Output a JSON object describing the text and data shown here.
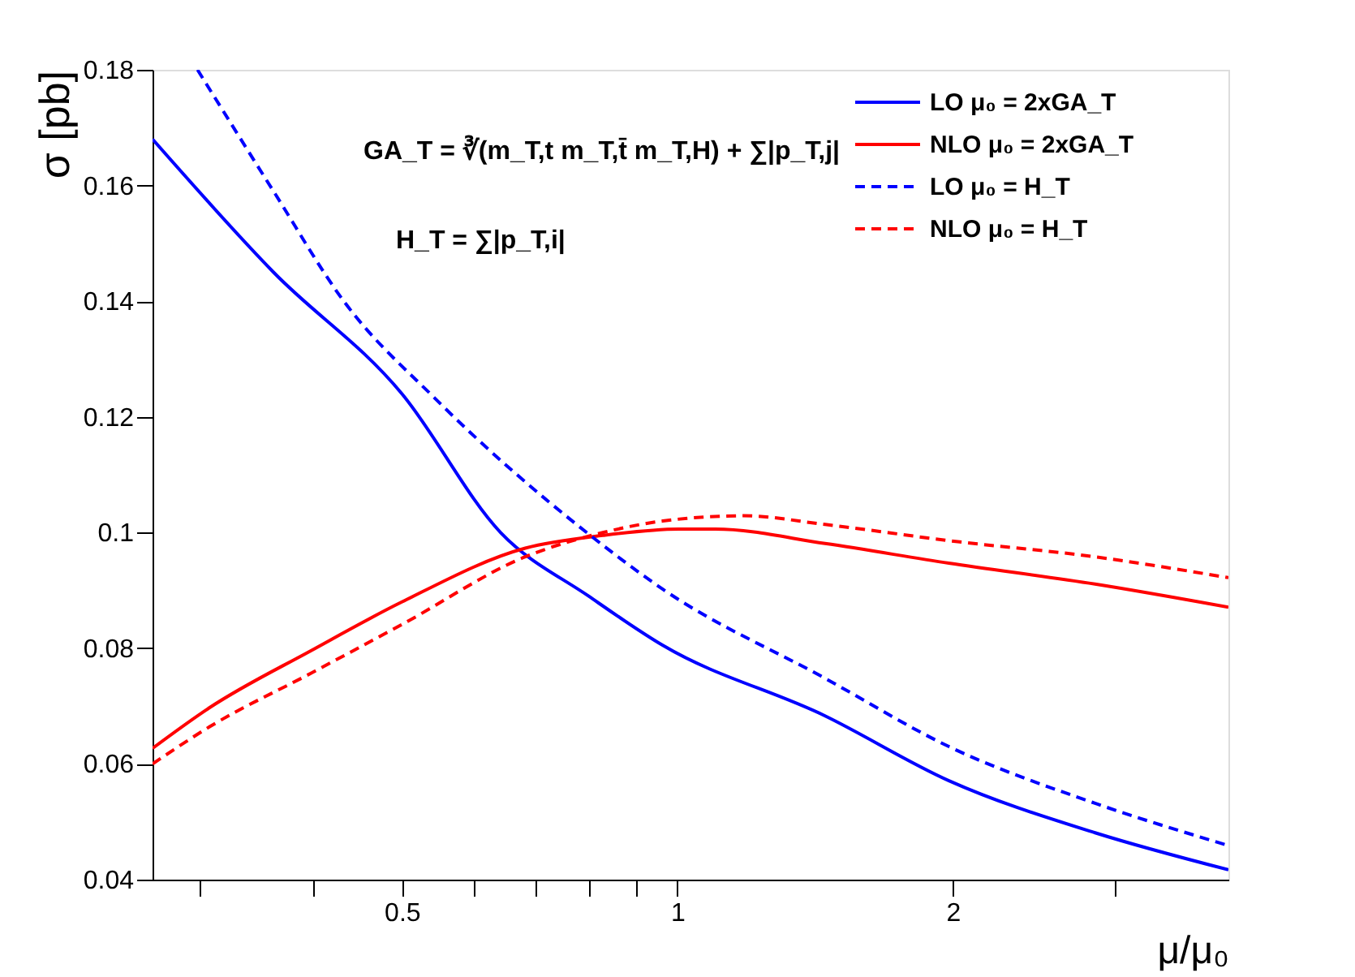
{
  "chart_data": {
    "type": "line",
    "xlabel": "μ/μ₀",
    "ylabel": "σ [pb]",
    "log": "x",
    "grid": false,
    "legend": "top right",
    "marker": "none",
    "xlim": [
      0.267,
      4
    ],
    "xticks": [
      {
        "value": 0.3,
        "label": null
      },
      {
        "value": 0.4,
        "label": null
      },
      0.5,
      {
        "value": 0.6,
        "label": null
      },
      {
        "value": 0.7,
        "label": null
      },
      {
        "value": 0.8,
        "label": null
      },
      {
        "value": 0.9,
        "label": null
      },
      1,
      2,
      {
        "value": 3,
        "label": null
      }
    ],
    "ylim": [
      0.04,
      0.18
    ],
    "yticks": [
      0.04,
      0.06,
      0.08,
      0.1,
      0.12,
      0.14,
      0.16,
      0.18
    ],
    "annotations": [
      "GA_T = ∛(m_T,t m_T,t̄ m_T,H) + ∑|p_T,j|",
      "H_T = ∑|p_T,i|"
    ],
    "series": [
      {
        "name": "LO μ₀ = 2xGA_T",
        "color": "#0000ff",
        "line_style": "solid",
        "x": [
          0.267,
          0.362,
          0.5,
          0.641,
          0.8,
          0.964,
          1.45,
          1.98,
          2.86,
          4
        ],
        "values": [
          0.168,
          0.145,
          0.124,
          0.1,
          0.089,
          0.0805,
          0.0683,
          0.0571,
          0.0481,
          0.0417
        ]
      },
      {
        "name": "NLO μ₀ = 2xGA_T",
        "color": "#ff0000",
        "line_style": "solid",
        "x": [
          0.267,
          0.308,
          0.398,
          0.5,
          0.682,
          0.829,
          1.004,
          1.1,
          1.45,
          1.98,
          2.86,
          4
        ],
        "values": [
          0.0627,
          0.0697,
          0.0796,
          0.088,
          0.0973,
          0.0995,
          0.1006,
          0.1006,
          0.0981,
          0.0947,
          0.0911,
          0.0871
        ]
      },
      {
        "name": "LO μ₀ = H_T",
        "color": "#0000ff",
        "line_style": "dashed",
        "x": [
          0.299,
          0.362,
          0.432,
          0.545,
          0.796,
          0.964,
          1.45,
          1.98,
          2.86,
          4
        ],
        "values": [
          0.18,
          0.159,
          0.14,
          0.123,
          0.1,
          0.0902,
          0.0748,
          0.063,
          0.0532,
          0.0459
        ]
      },
      {
        "name": "NLO μ₀ = H_T",
        "color": "#ff0000",
        "line_style": "dashed",
        "x": [
          0.267,
          0.308,
          0.398,
          0.5,
          0.682,
          0.829,
          0.964,
          1.18,
          1.45,
          1.98,
          2.86,
          4
        ],
        "values": [
          0.06,
          0.0664,
          0.0757,
          0.0841,
          0.0958,
          0.1,
          0.102,
          0.1029,
          0.1014,
          0.0986,
          0.0958,
          0.0922
        ]
      }
    ]
  }
}
